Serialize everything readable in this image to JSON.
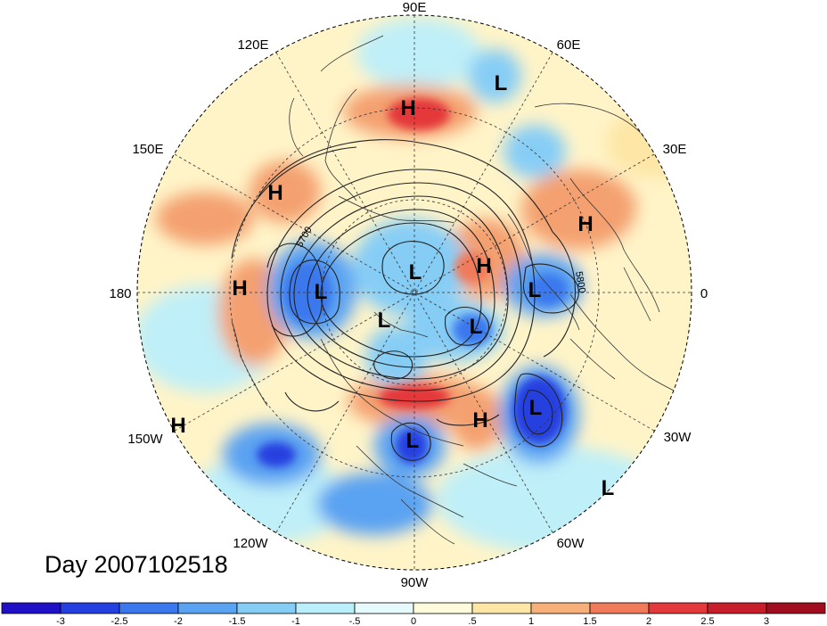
{
  "map": {
    "projection": "north-polar-stereographic",
    "longitude_labels": [
      {
        "id": "lon-90e",
        "text": "90E"
      },
      {
        "id": "lon-60e",
        "text": "60E"
      },
      {
        "id": "lon-30e",
        "text": "30E"
      },
      {
        "id": "lon-0",
        "text": "0"
      },
      {
        "id": "lon-30w",
        "text": "30W"
      },
      {
        "id": "lon-60w",
        "text": "60W"
      },
      {
        "id": "lon-90w",
        "text": "90W"
      },
      {
        "id": "lon-120w",
        "text": "120W"
      },
      {
        "id": "lon-150w",
        "text": "150W"
      },
      {
        "id": "lon-180",
        "text": "180"
      },
      {
        "id": "lon-150e",
        "text": "150E"
      },
      {
        "id": "lon-120e",
        "text": "120E"
      }
    ],
    "pressure_centers": [
      {
        "id": "high-siberia",
        "text": "H"
      },
      {
        "id": "low-kazakh",
        "text": "L"
      },
      {
        "id": "high-kamchatka",
        "text": "H"
      },
      {
        "id": "high-europe",
        "text": "H"
      },
      {
        "id": "high-arctic-east",
        "text": "H"
      },
      {
        "id": "low-arctic",
        "text": "L"
      },
      {
        "id": "low-europe",
        "text": "L"
      },
      {
        "id": "high-dateline",
        "text": "H"
      },
      {
        "id": "low-aleutian",
        "text": "L"
      },
      {
        "id": "low-canada-west",
        "text": "L"
      },
      {
        "id": "low-hudson",
        "text": "L"
      },
      {
        "id": "high-atlantic",
        "text": "H"
      },
      {
        "id": "low-atlantic",
        "text": "L"
      },
      {
        "id": "low-gulf",
        "text": "L"
      },
      {
        "id": "high-pacific",
        "text": "H"
      },
      {
        "id": "low-south-atlantic",
        "text": "L"
      }
    ],
    "contour_labels": [
      {
        "id": "contour-5700",
        "text": "5700"
      },
      {
        "id": "contour-5800",
        "text": "5800"
      }
    ],
    "colors": {
      "strong_negative": "#2233dd",
      "negative": "#4aa8ee",
      "weak_negative": "#bfeff8",
      "weak_positive": "#fff4c8",
      "positive": "#f4a070",
      "strong_positive": "#dd3030"
    }
  },
  "title": {
    "day_label": "Day 2007102518"
  },
  "colorbar": {
    "tick_labels": [
      "-3",
      "-2.5",
      "-2",
      "-1.5",
      "-1",
      "-.5",
      "0",
      ".5",
      "1",
      "1.5",
      "2",
      "2.5",
      "3"
    ],
    "bin_colors": [
      "#1f10c8",
      "#2540e0",
      "#3b78ee",
      "#5aa2f2",
      "#86cdf6",
      "#b8effa",
      "#e6fbfd",
      "#fffbdd",
      "#fde6a6",
      "#f7b07a",
      "#f07a5a",
      "#e4393a",
      "#c81e2c",
      "#a10d1e"
    ]
  }
}
